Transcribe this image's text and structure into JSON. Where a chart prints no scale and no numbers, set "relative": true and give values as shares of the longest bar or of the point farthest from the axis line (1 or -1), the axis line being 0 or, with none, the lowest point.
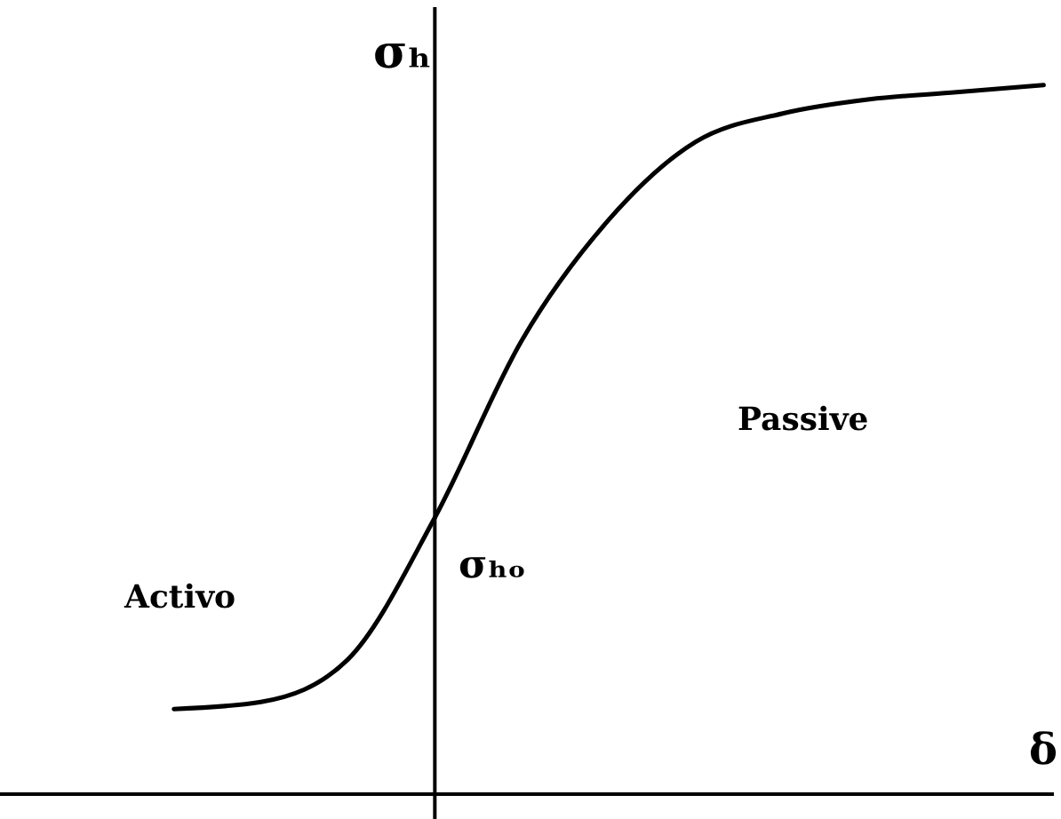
{
  "chart_data": {
    "type": "line",
    "relative": true,
    "xlabel": "δ",
    "ylabel": "σₕ",
    "categories": [
      null,
      null,
      null,
      null,
      null,
      null,
      null,
      null,
      null,
      null,
      null
    ],
    "values": [
      0.12,
      0.13,
      0.19,
      0.39,
      0.64,
      0.81,
      0.92,
      0.96,
      0.98,
      0.99,
      1
    ],
    "color": "#000000",
    "annotations": [
      "Activo",
      "Passive",
      "σₕₒ"
    ]
  }
}
